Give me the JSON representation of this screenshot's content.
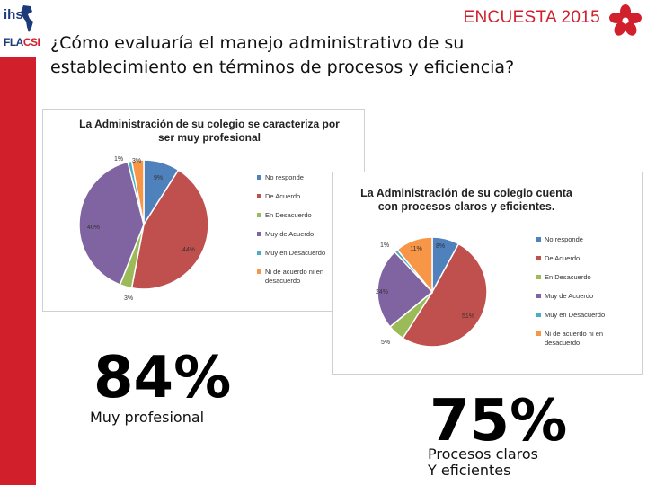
{
  "header": {
    "logo_top": "ihs",
    "logo_bottom_a": "FLA",
    "logo_bottom_b": "CSI",
    "survey_title": "ENCUESTA 2015",
    "question_line1": "¿Cómo evaluaría el manejo administrativo de su",
    "question_line2": "establecimiento en términos de procesos y eficiencia?"
  },
  "colors": {
    "brand_red": "#d11f2c",
    "brand_blue": "#1d3b7a",
    "series": [
      "#4f81bd",
      "#c0504d",
      "#9bbb59",
      "#8064a2",
      "#4bacc6",
      "#f79646"
    ]
  },
  "chart_data": [
    {
      "type": "pie",
      "title": "La Administración de su colegio se caracteriza por ser muy profesional",
      "categories": [
        "No responde",
        "De Acuerdo",
        "En Desacuerdo",
        "Muy de Acuerdo",
        "Muy en Desacuerdo",
        "Ni de acuerdo ni en desacuerdo"
      ],
      "values": [
        9,
        44,
        3,
        40,
        1,
        3
      ],
      "labels": [
        "9%",
        "44%",
        "3%",
        "40%",
        "1%",
        "3%"
      ],
      "legend": "right"
    },
    {
      "type": "pie",
      "title": "La Administración de su colegio cuenta con procesos claros y eficientes.",
      "categories": [
        "No responde",
        "De Acuerdo",
        "En Desacuerdo",
        "Muy de Acuerdo",
        "Muy en Desacuerdo",
        "Ni de acuerdo ni en desacuerdo"
      ],
      "values": [
        8,
        51,
        5,
        24,
        1,
        11
      ],
      "labels": [
        "8%",
        "51%",
        "5%",
        "24%",
        "1%",
        "11%"
      ],
      "legend": "right"
    }
  ],
  "summary": {
    "stat1_value": "84%",
    "stat1_caption": "Muy profesional",
    "stat2_value": "75%",
    "stat2_caption_line1": "Procesos claros",
    "stat2_caption_line2": "Y eficientes"
  }
}
